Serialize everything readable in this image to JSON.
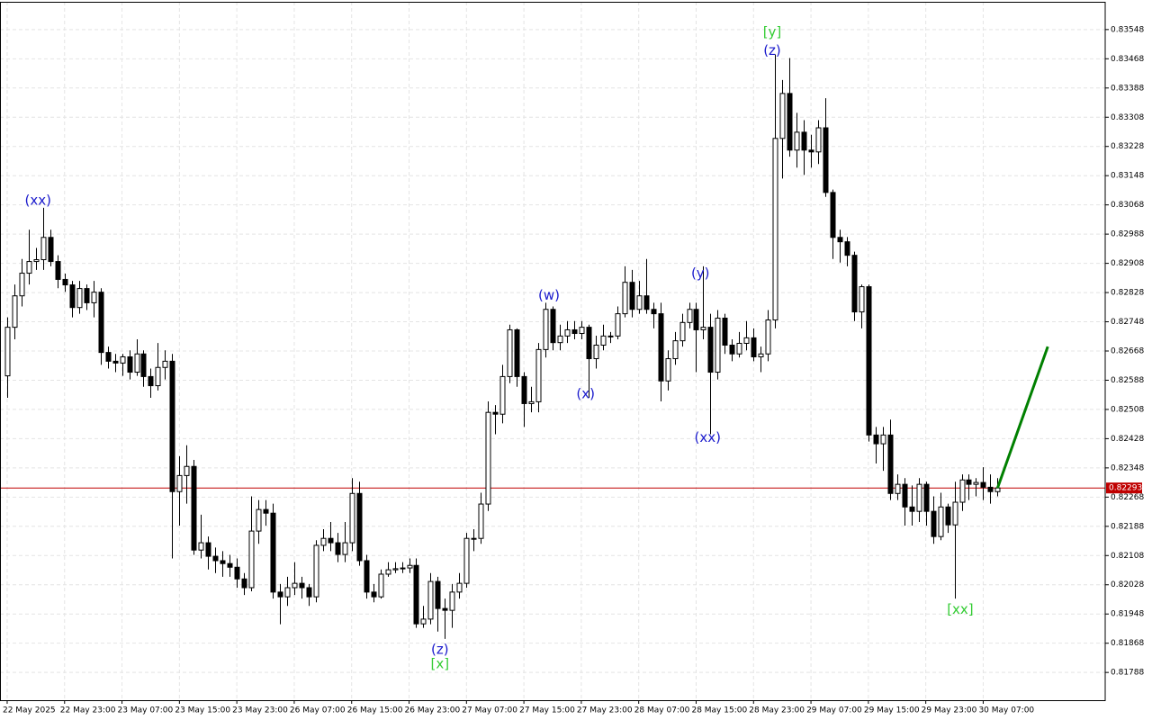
{
  "chart_data": {
    "type": "candlestick",
    "open": [
      0.826,
      0.82733,
      0.82819,
      0.82881,
      0.82913,
      0.82918,
      0.82979,
      0.82913,
      0.82864,
      0.82849,
      0.82787,
      0.82839,
      0.828,
      0.82829,
      0.82664,
      0.8264,
      0.82635,
      0.82652,
      0.8261,
      0.8266,
      0.82598,
      0.82573,
      0.82623,
      0.8264,
      0.82283,
      0.82327,
      0.82352,
      0.82123,
      0.82143,
      0.82106,
      0.82094,
      0.82086,
      0.82076,
      0.82044,
      0.8202,
      0.82175,
      0.82234,
      0.82224,
      0.82008,
      0.81995,
      0.8202,
      0.82032,
      0.8202,
      0.81995,
      0.82136,
      0.82155,
      0.82143,
      0.82111,
      0.82143,
      0.82278,
      0.82094,
      0.82008,
      0.81995,
      0.82057,
      0.82069,
      0.82072,
      0.82074,
      0.82081,
      0.81921,
      0.81934,
      0.82037,
      0.81963,
      0.81958,
      0.82008,
      0.82032,
      0.82155,
      0.82155,
      0.82249,
      0.825,
      0.82495,
      0.82598,
      0.82726,
      0.82598,
      0.82524,
      0.82529,
      0.82672,
      0.82782,
      0.82691,
      0.82709,
      0.82726,
      0.82716,
      0.82733,
      0.82647,
      0.82684,
      0.82709,
      0.82709,
      0.8277,
      0.82856,
      0.82782,
      0.82819,
      0.82782,
      0.8277,
      0.82586,
      0.82647,
      0.82696,
      0.82746,
      0.82782,
      0.82726,
      0.82733,
      0.8261,
      0.82758,
      0.82684,
      0.8266,
      0.82689,
      0.82704,
      0.82652,
      0.8266,
      0.82753,
      0.8325,
      0.83373,
      0.83218,
      0.83267,
      0.83218,
      0.83213,
      0.83279,
      0.83102,
      0.82979,
      0.82967,
      0.8293,
      0.82775,
      0.82844,
      0.82438,
      0.82414,
      0.82438,
      0.82278,
      0.82303,
      0.82241,
      0.82229,
      0.82303,
      0.82229,
      0.8216,
      0.82241,
      0.82192,
      0.82254,
      0.82315,
      0.82303,
      0.82308,
      0.82295,
      0.82283
    ],
    "high": [
      0.8276,
      0.8285,
      0.8292,
      0.83,
      0.8295,
      0.8306,
      0.83,
      0.8293,
      0.8288,
      0.8286,
      0.8286,
      0.8285,
      0.8286,
      0.8284,
      0.8268,
      0.8266,
      0.8266,
      0.8267,
      0.827,
      0.8267,
      0.8262,
      0.8269,
      0.8267,
      0.8266,
      0.8238,
      0.8241,
      0.8237,
      0.8222,
      0.8216,
      0.8213,
      0.8212,
      0.8211,
      0.821,
      0.8206,
      0.8227,
      0.8226,
      0.8226,
      0.8225,
      0.8203,
      0.8205,
      0.8209,
      0.8205,
      0.8203,
      0.8215,
      0.8218,
      0.822,
      0.8217,
      0.822,
      0.8232,
      0.8231,
      0.8211,
      0.8203,
      0.8207,
      0.8209,
      0.8209,
      0.8209,
      0.821,
      0.821,
      0.8197,
      0.8206,
      0.8205,
      0.8199,
      0.8203,
      0.8206,
      0.8217,
      0.8218,
      0.8228,
      0.8253,
      0.8252,
      0.8263,
      0.8274,
      0.8273,
      0.8261,
      0.8257,
      0.8269,
      0.828,
      0.8279,
      0.8274,
      0.8275,
      0.8275,
      0.8275,
      0.8274,
      0.8271,
      0.8274,
      0.8272,
      0.8279,
      0.829,
      0.8289,
      0.8286,
      0.8292,
      0.828,
      0.828,
      0.8267,
      0.8272,
      0.8277,
      0.828,
      0.828,
      0.829,
      0.8277,
      0.8278,
      0.8277,
      0.827,
      0.8272,
      0.8275,
      0.8273,
      0.8268,
      0.8278,
      0.8348,
      0.8341,
      0.8347,
      0.8332,
      0.833,
      0.8326,
      0.833,
      0.8336,
      0.8311,
      0.83,
      0.8298,
      0.8294,
      0.8285,
      0.8285,
      0.8246,
      0.8246,
      0.8248,
      0.8233,
      0.8232,
      0.823,
      0.8232,
      0.8231,
      0.8227,
      0.8228,
      0.8225,
      0.8231,
      0.8233,
      0.8233,
      0.8232,
      0.8235,
      0.8233,
      0.8232
    ],
    "low": [
      0.8254,
      0.827,
      0.8279,
      0.8285,
      0.8289,
      0.8289,
      0.829,
      0.8284,
      0.8283,
      0.8276,
      0.8277,
      0.8278,
      0.8276,
      0.8263,
      0.8262,
      0.8261,
      0.826,
      0.8259,
      0.826,
      0.8257,
      0.8254,
      0.8256,
      0.8259,
      0.821,
      0.8219,
      0.8225,
      0.8211,
      0.821,
      0.8207,
      0.8206,
      0.8205,
      0.8205,
      0.8202,
      0.82,
      0.8201,
      0.8214,
      0.8219,
      0.8199,
      0.8192,
      0.8197,
      0.82,
      0.8199,
      0.8197,
      0.8198,
      0.8212,
      0.8212,
      0.8209,
      0.8209,
      0.8212,
      0.8208,
      0.8199,
      0.8198,
      0.8199,
      0.8205,
      0.8206,
      0.8206,
      0.8206,
      0.8191,
      0.8191,
      0.8192,
      0.819,
      0.8188,
      0.8191,
      0.8199,
      0.8202,
      0.8212,
      0.8214,
      0.8223,
      0.8244,
      0.8247,
      0.8258,
      0.8257,
      0.8246,
      0.825,
      0.825,
      0.8265,
      0.8267,
      0.8267,
      0.8269,
      0.827,
      0.827,
      0.8254,
      0.8262,
      0.8267,
      0.8269,
      0.827,
      0.8276,
      0.8276,
      0.8277,
      0.8277,
      0.8273,
      0.8253,
      0.8256,
      0.8263,
      0.8268,
      0.8273,
      0.8261,
      0.827,
      0.8244,
      0.8259,
      0.8266,
      0.8264,
      0.8265,
      0.8267,
      0.8264,
      0.8261,
      0.8264,
      0.8273,
      0.8314,
      0.832,
      0.8317,
      0.8315,
      0.8317,
      0.8318,
      0.8309,
      0.8292,
      0.8291,
      0.829,
      0.8275,
      0.8273,
      0.8242,
      0.8236,
      0.8234,
      0.8226,
      0.8226,
      0.8219,
      0.8219,
      0.822,
      0.8219,
      0.8214,
      0.8215,
      0.8217,
      0.8199,
      0.8223,
      0.8226,
      0.8227,
      0.8226,
      0.8225,
      0.8227
    ],
    "close": [
      0.82733,
      0.82819,
      0.82881,
      0.82913,
      0.82918,
      0.82979,
      0.82913,
      0.82864,
      0.82849,
      0.82787,
      0.82839,
      0.828,
      0.82829,
      0.82664,
      0.8264,
      0.82635,
      0.82652,
      0.8261,
      0.8266,
      0.82598,
      0.82573,
      0.82623,
      0.8264,
      0.82283,
      0.82327,
      0.82352,
      0.82123,
      0.82143,
      0.82106,
      0.82094,
      0.82086,
      0.82076,
      0.82044,
      0.8202,
      0.82175,
      0.82234,
      0.82224,
      0.82008,
      0.81995,
      0.8202,
      0.82032,
      0.8202,
      0.81995,
      0.82136,
      0.82155,
      0.82143,
      0.82111,
      0.82143,
      0.82278,
      0.82094,
      0.82008,
      0.81995,
      0.82057,
      0.82069,
      0.82072,
      0.82074,
      0.82081,
      0.81921,
      0.81934,
      0.82037,
      0.81963,
      0.81958,
      0.82008,
      0.82032,
      0.82155,
      0.82155,
      0.82249,
      0.825,
      0.82495,
      0.82598,
      0.82726,
      0.82598,
      0.82524,
      0.82529,
      0.82672,
      0.82782,
      0.82691,
      0.82709,
      0.82726,
      0.82716,
      0.82733,
      0.82647,
      0.82684,
      0.82709,
      0.82709,
      0.8277,
      0.82856,
      0.82782,
      0.82819,
      0.82782,
      0.8277,
      0.82586,
      0.82647,
      0.82696,
      0.82746,
      0.82782,
      0.82726,
      0.82733,
      0.8261,
      0.82758,
      0.82684,
      0.8266,
      0.82689,
      0.82704,
      0.82652,
      0.8266,
      0.82753,
      0.8325,
      0.83373,
      0.83218,
      0.83267,
      0.83218,
      0.83213,
      0.83279,
      0.83102,
      0.82979,
      0.82967,
      0.8293,
      0.82775,
      0.82844,
      0.82438,
      0.82414,
      0.82438,
      0.82278,
      0.82303,
      0.82241,
      0.82229,
      0.82303,
      0.82229,
      0.8216,
      0.82241,
      0.82192,
      0.82254,
      0.82315,
      0.82303,
      0.82308,
      0.82295,
      0.82283,
      0.82293
    ],
    "up_color": "#ffffff",
    "down_color": "#000000",
    "xlim": [
      -1,
      153
    ],
    "xticks": [
      {
        "value": 0,
        "label": "22 May 2025"
      },
      {
        "value": 8,
        "label": "22 May 23:00"
      },
      {
        "value": 16,
        "label": "23 May 07:00"
      },
      {
        "value": 24,
        "label": "23 May 15:00"
      },
      {
        "value": 32,
        "label": "23 May 23:00"
      },
      {
        "value": 40,
        "label": "26 May 07:00"
      },
      {
        "value": 48,
        "label": "26 May 15:00"
      },
      {
        "value": 56,
        "label": "26 May 23:00"
      },
      {
        "value": 64,
        "label": "27 May 07:00"
      },
      {
        "value": 72,
        "label": "27 May 15:00"
      },
      {
        "value": 80,
        "label": "27 May 23:00"
      },
      {
        "value": 88,
        "label": "28 May 07:00"
      },
      {
        "value": 96,
        "label": "28 May 15:00"
      },
      {
        "value": 104,
        "label": "28 May 23:00"
      },
      {
        "value": 112,
        "label": "29 May 07:00"
      },
      {
        "value": 120,
        "label": "29 May 15:00"
      },
      {
        "value": 128,
        "label": "29 May 23:00"
      },
      {
        "value": 136,
        "label": "30 May 07:00"
      }
    ],
    "ylim": [
      0.81712,
      0.83624
    ],
    "yticks": [
      0.81788,
      0.81868,
      0.81948,
      0.82028,
      0.82108,
      0.82188,
      0.82268,
      0.82348,
      0.82428,
      0.82508,
      0.82588,
      0.82668,
      0.82748,
      0.82828,
      0.82908,
      0.82988,
      0.83068,
      0.83148,
      0.83228,
      0.83308,
      0.83388,
      0.83468,
      0.83548
    ],
    "grid": true,
    "current_price": {
      "value": 0.82293,
      "color": "#c00000"
    },
    "forecast": {
      "x": [
        138,
        145
      ],
      "values": [
        0.82293,
        0.8268
      ],
      "color": "#008000"
    },
    "annotations": [
      {
        "text": "(xx)",
        "x": 4.3,
        "y": 0.8308,
        "color": "#1a1acc"
      },
      {
        "text": "(z)",
        "x": 60.3,
        "y": 0.8185,
        "color": "#1a1acc"
      },
      {
        "text": "[x]",
        "x": 60.3,
        "y": 0.8181,
        "color": "#33cc33"
      },
      {
        "text": "(w)",
        "x": 75.5,
        "y": 0.8282,
        "color": "#1a1acc"
      },
      {
        "text": "(x)",
        "x": 80.6,
        "y": 0.8255,
        "color": "#1a1acc"
      },
      {
        "text": "(y)",
        "x": 96.6,
        "y": 0.8288,
        "color": "#1a1acc"
      },
      {
        "text": "(xx)",
        "x": 97.6,
        "y": 0.8243,
        "color": "#1a1acc"
      },
      {
        "text": "[y]",
        "x": 106.6,
        "y": 0.8354,
        "color": "#33cc33"
      },
      {
        "text": "(z)",
        "x": 106.6,
        "y": 0.8349,
        "color": "#1a1acc"
      },
      {
        "text": "[xx]",
        "x": 132.8,
        "y": 0.8196,
        "color": "#33cc33"
      }
    ]
  }
}
